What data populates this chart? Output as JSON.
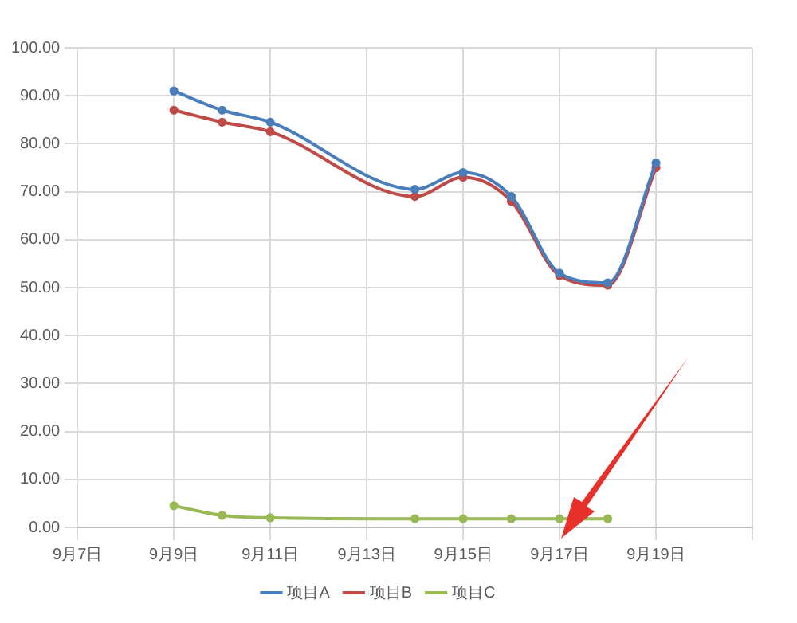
{
  "chart_data": {
    "type": "line",
    "x": [
      "--09-09",
      "--09-10",
      "--09-11",
      "--09-14",
      "--09-15",
      "--09-16",
      "--09-17",
      "--09-18",
      "--09-19"
    ],
    "series": [
      {
        "name": "项目A",
        "color": "#4a7ebb",
        "values": [
          91,
          87,
          84.5,
          70.5,
          74,
          69,
          53,
          51,
          76
        ]
      },
      {
        "name": "项目B",
        "color": "#be4b48",
        "values": [
          87,
          84.5,
          82.5,
          69,
          73,
          68,
          52.5,
          50.5,
          75
        ]
      },
      {
        "name": "项目C",
        "color": "#98b954",
        "values": [
          4.5,
          2.5,
          2,
          1.8,
          1.8,
          1.8,
          1.8,
          1.8,
          null
        ]
      }
    ],
    "xlim": [
      "--09-07",
      "--09-21"
    ],
    "xticks": [
      {
        "value": "--09-07",
        "label": "9月7日"
      },
      {
        "value": "--09-09",
        "label": "9月9日"
      },
      {
        "value": "--09-11",
        "label": "9月11日"
      },
      {
        "value": "--09-13",
        "label": "9月13日"
      },
      {
        "value": "--09-15",
        "label": "9月15日"
      },
      {
        "value": "--09-17",
        "label": "9月17日"
      },
      {
        "value": "--09-19",
        "label": "9月19日"
      },
      {
        "value": "--09-21",
        "label": null
      }
    ],
    "ylim": [
      0,
      100
    ],
    "yticks": [
      {
        "value": 0,
        "label": "0.00"
      },
      {
        "value": 10,
        "label": "10.00"
      },
      {
        "value": 20,
        "label": "20.00"
      },
      {
        "value": 30,
        "label": "30.00"
      },
      {
        "value": 40,
        "label": "40.00"
      },
      {
        "value": 50,
        "label": "50.00"
      },
      {
        "value": 60,
        "label": "60.00"
      },
      {
        "value": 70,
        "label": "70.00"
      },
      {
        "value": 80,
        "label": "80.00"
      },
      {
        "value": 90,
        "label": "90.00"
      },
      {
        "value": 100,
        "label": "100.00"
      }
    ],
    "grid": true,
    "legend": "bottom",
    "marker": "circle",
    "line_style": "solid"
  }
}
